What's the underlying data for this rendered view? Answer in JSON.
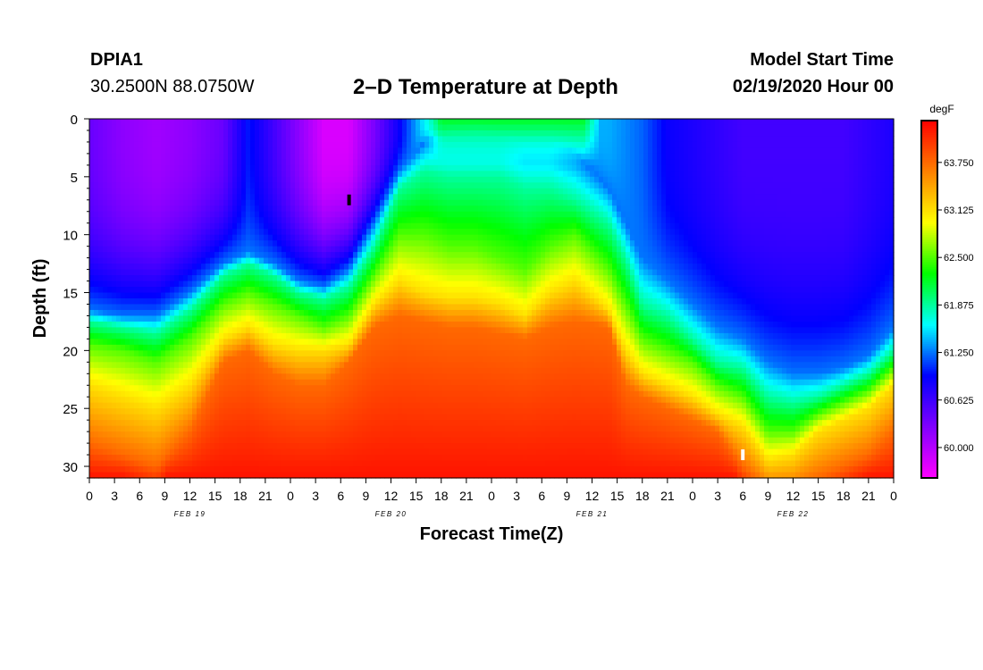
{
  "header": {
    "station": "DPIA1",
    "coordinates": "30.2500N 88.0750W",
    "title": "2–D Temperature at Depth",
    "model_start_label": "Model Start Time",
    "model_start_value": "02/19/2020 Hour 00"
  },
  "chart_data": {
    "type": "heatmap",
    "title": "2–D Temperature at Depth",
    "xlabel": "Forecast Time(Z)",
    "ylabel": "Depth (ft)",
    "colorbar_label": "degF",
    "x_range_hours": [
      0,
      96
    ],
    "y_range_ft": [
      0,
      31
    ],
    "y_ticks": [
      0,
      5,
      10,
      15,
      20,
      25,
      30
    ],
    "x_tick_labels": [
      "0",
      "3",
      "6",
      "9",
      "12",
      "15",
      "18",
      "21",
      "0",
      "3",
      "6",
      "9",
      "12",
      "15",
      "18",
      "21",
      "0",
      "3",
      "6",
      "9",
      "12",
      "15",
      "18",
      "21",
      "0",
      "3",
      "6",
      "9",
      "12",
      "15",
      "18",
      "21",
      "0"
    ],
    "day_labels": [
      "FEB 19",
      "FEB 20",
      "FEB 21",
      "FEB 22"
    ],
    "colorbar_ticks": [
      "60.000",
      "60.625",
      "61.250",
      "61.875",
      "62.500",
      "63.125",
      "63.750"
    ],
    "colorbar_range": [
      59.6,
      64.3
    ],
    "colors": {
      "scale": [
        "#ff00ff",
        "#8000ff",
        "#0000ff",
        "#00ffff",
        "#00ff00",
        "#ffff00",
        "#ff8000",
        "#ff0000"
      ]
    },
    "profiles": [
      {
        "x": 0,
        "boundary_depths": [
          16.5,
          17.5,
          19.5,
          23,
          28
        ],
        "near_surface_temp": 60.4
      },
      {
        "x": 4,
        "boundary_depths": [
          17,
          18,
          20,
          24,
          29
        ],
        "near_surface_temp": 60.2
      },
      {
        "x": 8,
        "boundary_depths": [
          17,
          18.5,
          21,
          25,
          30
        ],
        "near_surface_temp": 60.1
      },
      {
        "x": 12,
        "boundary_depths": [
          15,
          16.5,
          19,
          23,
          27
        ],
        "near_surface_temp": 60.2
      },
      {
        "x": 16,
        "boundary_depths": [
          12.5,
          13.5,
          16,
          19,
          21
        ],
        "near_surface_temp": 60.4
      },
      {
        "x": 19,
        "boundary_depths": [
          11.5,
          12.5,
          15,
          18,
          20
        ],
        "near_surface_temp": 61.0
      },
      {
        "x": 22,
        "boundary_depths": [
          12.5,
          13.5,
          16,
          19.5,
          22
        ],
        "near_surface_temp": 60.6
      },
      {
        "x": 25,
        "boundary_depths": [
          14,
          15,
          17,
          20,
          23
        ],
        "near_surface_temp": 60.2
      },
      {
        "x": 28,
        "boundary_depths": [
          14.5,
          15.5,
          18,
          20,
          23
        ],
        "near_surface_temp": 59.8
      },
      {
        "x": 31,
        "boundary_depths": [
          13,
          14.5,
          17,
          19.5,
          21
        ],
        "near_surface_temp": 59.8
      },
      {
        "x": 34,
        "boundary_depths": [
          9,
          11,
          13.5,
          16,
          18
        ],
        "near_surface_temp": 60.3
      },
      {
        "x": 37,
        "boundary_depths": [
          4.5,
          6,
          10,
          14,
          17
        ],
        "near_surface_temp": 60.9
      },
      {
        "x": 40,
        "boundary_depths": [
          2,
          4.5,
          10,
          15,
          17.5
        ],
        "near_surface_temp": 61.6
      },
      {
        "x": 43,
        "boundary_depths": [
          1.5,
          5,
          11,
          15.5,
          18
        ],
        "near_surface_temp": 61.3
      },
      {
        "x": 46,
        "boundary_depths": [
          1.5,
          5,
          11,
          15.5,
          18
        ],
        "near_surface_temp": 61.2
      },
      {
        "x": 49,
        "boundary_depths": [
          1.5,
          5,
          12,
          16,
          18.5
        ],
        "near_surface_temp": 61.3
      },
      {
        "x": 52,
        "boundary_depths": [
          2,
          6,
          13,
          17,
          19
        ],
        "near_surface_temp": 61.3
      },
      {
        "x": 55,
        "boundary_depths": [
          2,
          6,
          11,
          15,
          18
        ],
        "near_surface_temp": 61.3
      },
      {
        "x": 58,
        "boundary_depths": [
          3,
          7,
          10,
          14,
          17.5
        ],
        "near_surface_temp": 61.4
      },
      {
        "x": 62,
        "boundary_depths": [
          6,
          9,
          13,
          16.5,
          18
        ],
        "near_surface_temp": 61.4
      },
      {
        "x": 64,
        "boundary_depths": [
          9,
          12,
          16,
          20,
          23
        ],
        "near_surface_temp": 61.3
      },
      {
        "x": 66,
        "boundary_depths": [
          12,
          16,
          19,
          22,
          24
        ],
        "near_surface_temp": 61.2
      },
      {
        "x": 69,
        "boundary_depths": [
          14,
          17,
          20,
          23,
          25
        ],
        "near_surface_temp": 60.9
      },
      {
        "x": 72,
        "boundary_depths": [
          16,
          19,
          21,
          24,
          26
        ],
        "near_surface_temp": 60.8
      },
      {
        "x": 75,
        "boundary_depths": [
          18,
          21,
          23,
          25.5,
          27
        ],
        "near_surface_temp": 60.7
      },
      {
        "x": 78,
        "boundary_depths": [
          19,
          21.5,
          24,
          26.5,
          30
        ],
        "near_surface_temp": 60.6
      },
      {
        "x": 81,
        "boundary_depths": [
          21,
          24,
          27,
          29.5,
          32
        ],
        "near_surface_temp": 60.6
      },
      {
        "x": 84,
        "boundary_depths": [
          22,
          24.5,
          27,
          29,
          32
        ],
        "near_surface_temp": 60.6
      },
      {
        "x": 87,
        "boundary_depths": [
          22,
          24,
          25.5,
          27,
          31
        ],
        "near_surface_temp": 60.6
      },
      {
        "x": 90,
        "boundary_depths": [
          21.5,
          23,
          24.5,
          26,
          30
        ],
        "near_surface_temp": 60.6
      },
      {
        "x": 93,
        "boundary_depths": [
          20.5,
          22,
          23.5,
          25,
          29
        ],
        "near_surface_temp": 60.7
      },
      {
        "x": 96,
        "boundary_depths": [
          18,
          20,
          21.5,
          23,
          27
        ],
        "near_surface_temp": 60.8
      }
    ],
    "boundary_temps": [
      61.25,
      61.875,
      62.5,
      63.125,
      63.75
    ],
    "bottom_temp": 64.2,
    "warm_cap": [
      {
        "x_start": 40,
        "x_end": 61,
        "depth_end": 4,
        "temp": 62.2
      }
    ],
    "markers": [
      {
        "x": 31,
        "depth": 7,
        "color": "#000000"
      },
      {
        "x": 78,
        "depth": 29,
        "color": "#ffffff"
      }
    ]
  }
}
